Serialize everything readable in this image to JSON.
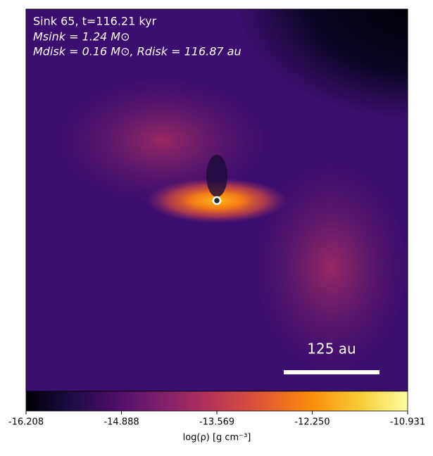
{
  "chart_data": {
    "type": "image",
    "annotations": [
      "Sink 65, t=116.21 kyr",
      "Msink = 1.24 M⊙",
      "Mdisk = 0.16 M⊙, Rdisk = 116.87 au"
    ],
    "scale_bar_label": "125 au",
    "colorbar": {
      "label": "log(ρ) [g cm⁻³]",
      "colormap": "inferno",
      "lim": [
        -16.208,
        -10.931
      ],
      "ticks": [
        -16.208,
        -14.888,
        -13.569,
        {
          "value": -12.25,
          "label": "-12.250"
        },
        -10.931
      ]
    }
  }
}
